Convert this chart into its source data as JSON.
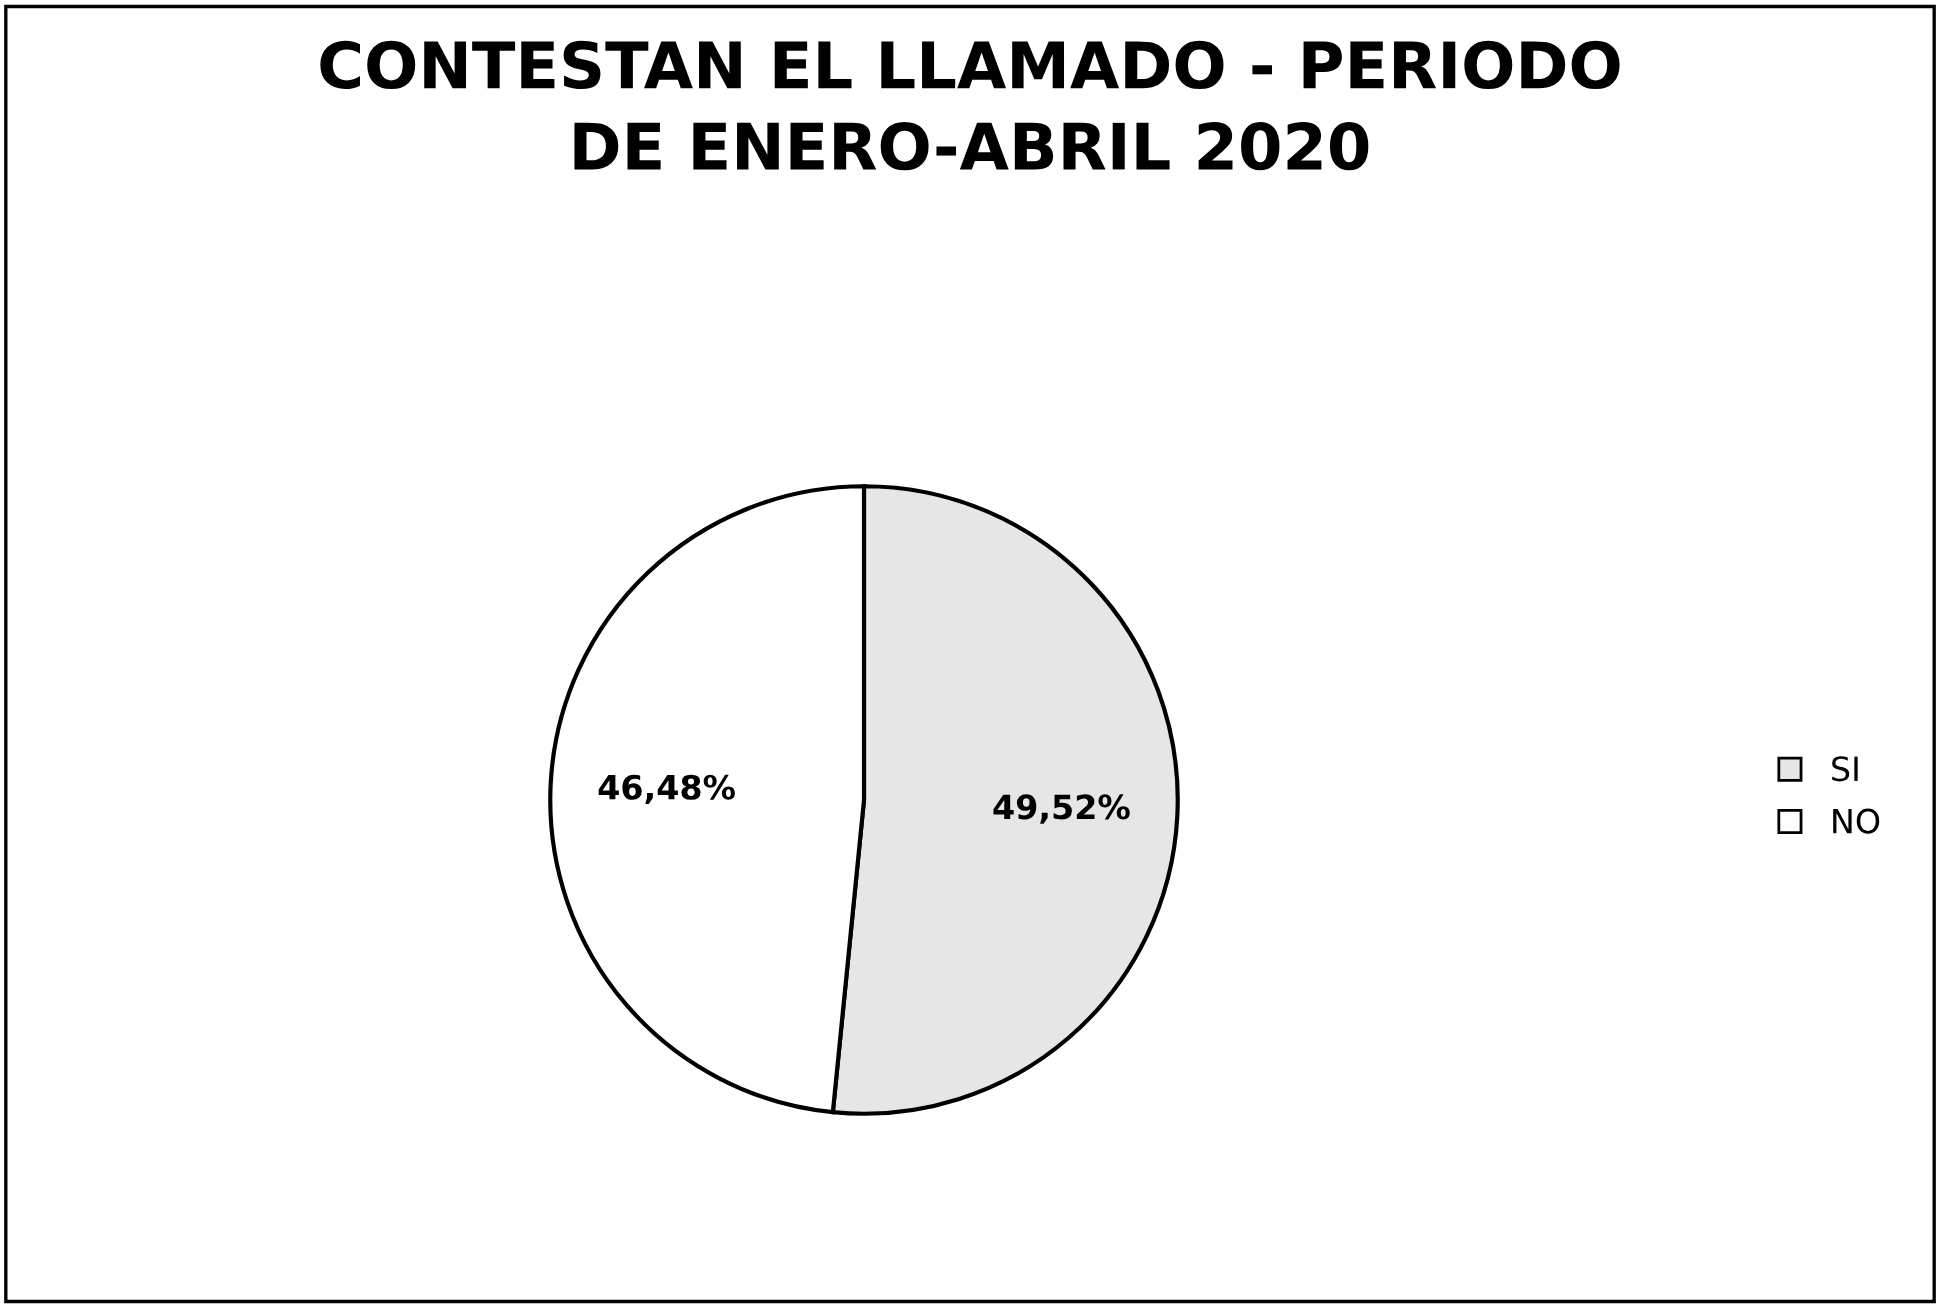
{
  "chart_data": {
    "type": "pie",
    "title": "CONTESTAN EL LLAMADO - PERIODO\nDE ENERO-ABRIL 2020",
    "categories": [
      "SI",
      "NO"
    ],
    "values": [
      49.52,
      46.48
    ],
    "colors": [
      "#e6e6e6",
      "#ffffff"
    ],
    "value_labels": [
      "49,52%",
      "46,48%"
    ],
    "legend": "right"
  }
}
